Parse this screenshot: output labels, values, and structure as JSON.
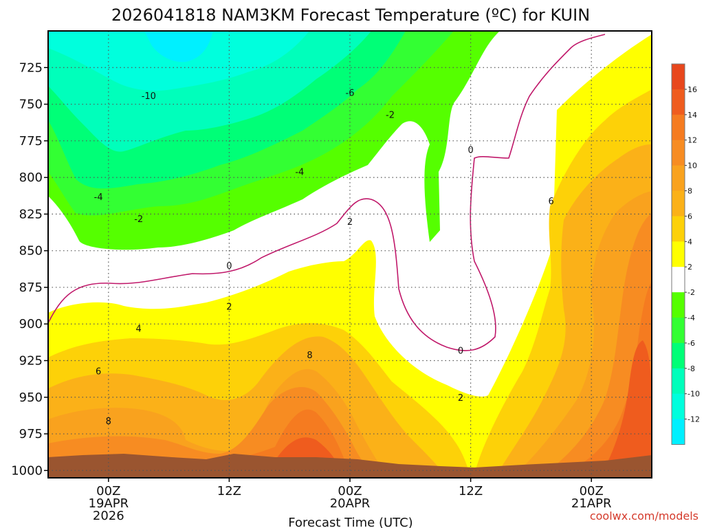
{
  "title": "2026041818 NAM3KM Forecast Temperature (ºC) for KUIN",
  "xlabel": "Forecast Time (UTC)",
  "credit": "coolwx.com/models",
  "colors": {
    "ground": "#9a5530",
    "zero_line": "#c0186a",
    "contour_line": "#111111"
  },
  "chart_data": {
    "type": "heatmap",
    "title": "2026041818 NAM3KM Forecast Temperature (ºC) for KUIN",
    "xlabel": "Forecast Time (UTC)",
    "ylabel": "",
    "x_range_hours": [
      -6,
      54
    ],
    "x_ticks": [
      {
        "hour": 0,
        "lines": [
          "00Z",
          "19APR",
          "2026"
        ]
      },
      {
        "hour": 12,
        "lines": [
          "12Z"
        ]
      },
      {
        "hour": 24,
        "lines": [
          "00Z",
          "20APR"
        ]
      },
      {
        "hour": 36,
        "lines": [
          "12Z"
        ]
      },
      {
        "hour": 48,
        "lines": [
          "00Z",
          "21APR"
        ]
      }
    ],
    "y_axis": "pressure (hPa), inverted",
    "y_range": [
      700,
      1005
    ],
    "y_ticks": [
      725,
      750,
      775,
      800,
      825,
      850,
      875,
      900,
      925,
      950,
      975,
      1000
    ],
    "grid": "dotted",
    "colorbar": {
      "ticks": [
        16,
        14,
        12,
        10,
        8,
        6,
        4,
        2,
        -2,
        -4,
        -6,
        -8,
        -10,
        -12
      ],
      "bins": [
        {
          "lo": 16,
          "hi": 18,
          "color": "#e8471c"
        },
        {
          "lo": 14,
          "hi": 16,
          "color": "#ef5c1e"
        },
        {
          "lo": 12,
          "hi": 14,
          "color": "#f57b20"
        },
        {
          "lo": 10,
          "hi": 12,
          "color": "#f78c22"
        },
        {
          "lo": 8,
          "hi": 10,
          "color": "#f9a21e"
        },
        {
          "lo": 6,
          "hi": 8,
          "color": "#fbb118"
        },
        {
          "lo": 4,
          "hi": 6,
          "color": "#fdd108"
        },
        {
          "lo": 2,
          "hi": 4,
          "color": "#ffff00"
        },
        {
          "lo": -2,
          "hi": 2,
          "color": "#ffffff"
        },
        {
          "lo": -4,
          "hi": -2,
          "color": "#55ff00"
        },
        {
          "lo": -6,
          "hi": -4,
          "color": "#33ff33"
        },
        {
          "lo": -8,
          "hi": -6,
          "color": "#00ff77"
        },
        {
          "lo": -10,
          "hi": -8,
          "color": "#00ffbb"
        },
        {
          "lo": -12,
          "hi": -10,
          "color": "#00ffdd"
        },
        {
          "lo": -14,
          "hi": -12,
          "color": "#00f0ff"
        }
      ]
    },
    "contour_labels": [
      {
        "value": "-10",
        "hour": 4,
        "p": 744
      },
      {
        "value": "-6",
        "hour": 24,
        "p": 742
      },
      {
        "value": "-2",
        "hour": 28,
        "p": 757
      },
      {
        "value": "-4",
        "hour": 19,
        "p": 796
      },
      {
        "value": "-4",
        "hour": -1,
        "p": 813
      },
      {
        "value": "-2",
        "hour": 3,
        "p": 828
      },
      {
        "value": "0",
        "hour": 36,
        "p": 781
      },
      {
        "value": "0",
        "hour": 12,
        "p": 860
      },
      {
        "value": "2",
        "hour": 24,
        "p": 830
      },
      {
        "value": "2",
        "hour": 12,
        "p": 888
      },
      {
        "value": "4",
        "hour": 3,
        "p": 903
      },
      {
        "value": "8",
        "hour": 20,
        "p": 921
      },
      {
        "value": "6",
        "hour": -1,
        "p": 932
      },
      {
        "value": "8",
        "hour": 0,
        "p": 966
      },
      {
        "value": "0",
        "hour": 35,
        "p": 918
      },
      {
        "value": "2",
        "hour": 35,
        "p": 950
      },
      {
        "value": "6",
        "hour": 44,
        "p": 816
      }
    ]
  }
}
